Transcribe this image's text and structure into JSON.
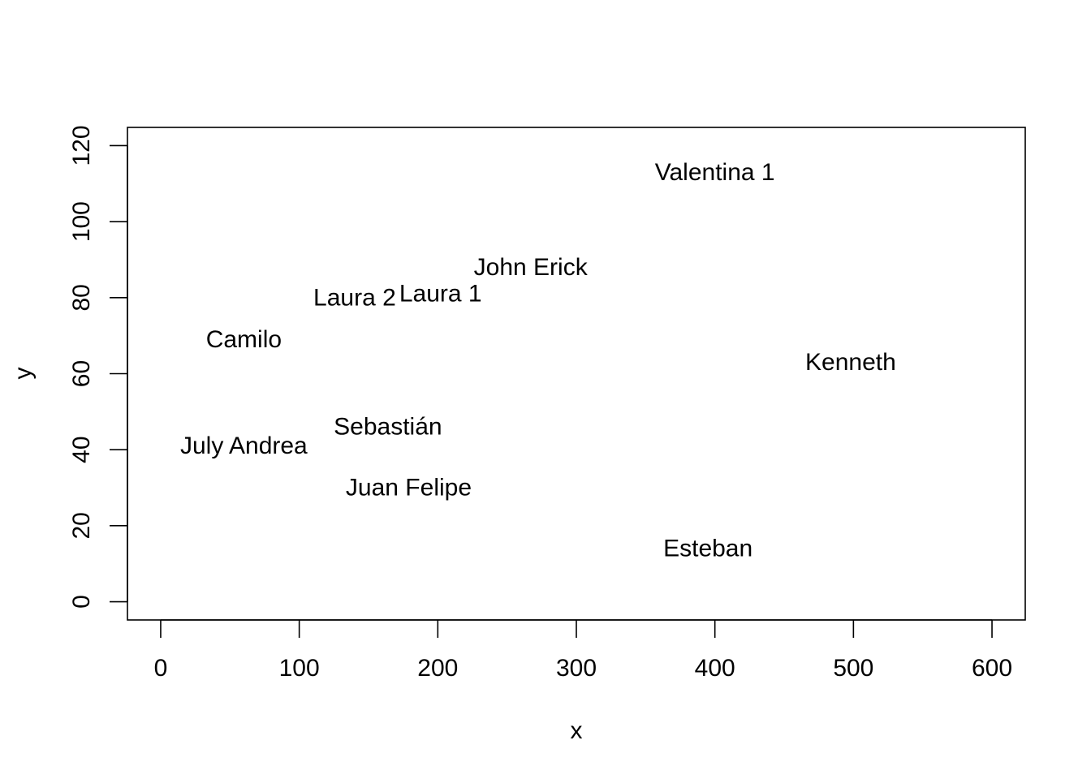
{
  "chart_data": {
    "type": "scatter",
    "xlabel": "x",
    "ylabel": "y",
    "xlim": [
      -24,
      624
    ],
    "ylim": [
      -4.8,
      124.8
    ],
    "xticks": [
      0,
      100,
      200,
      300,
      400,
      500,
      600
    ],
    "yticks": [
      0,
      20,
      40,
      60,
      80,
      100,
      120
    ],
    "grid": false,
    "points": [
      {
        "label": "Valentina 1",
        "x": 400,
        "y": 113
      },
      {
        "label": "John Erick",
        "x": 267,
        "y": 88
      },
      {
        "label": "Laura 1",
        "x": 202,
        "y": 81
      },
      {
        "label": "Laura 2",
        "x": 140,
        "y": 80
      },
      {
        "label": "Camilo",
        "x": 60,
        "y": 69
      },
      {
        "label": "Kenneth",
        "x": 498,
        "y": 63
      },
      {
        "label": "Sebastián",
        "x": 164,
        "y": 46
      },
      {
        "label": "July Andrea",
        "x": 60,
        "y": 41
      },
      {
        "label": "Juan Felipe",
        "x": 179,
        "y": 30
      },
      {
        "label": "Esteban",
        "x": 395,
        "y": 14
      }
    ]
  }
}
